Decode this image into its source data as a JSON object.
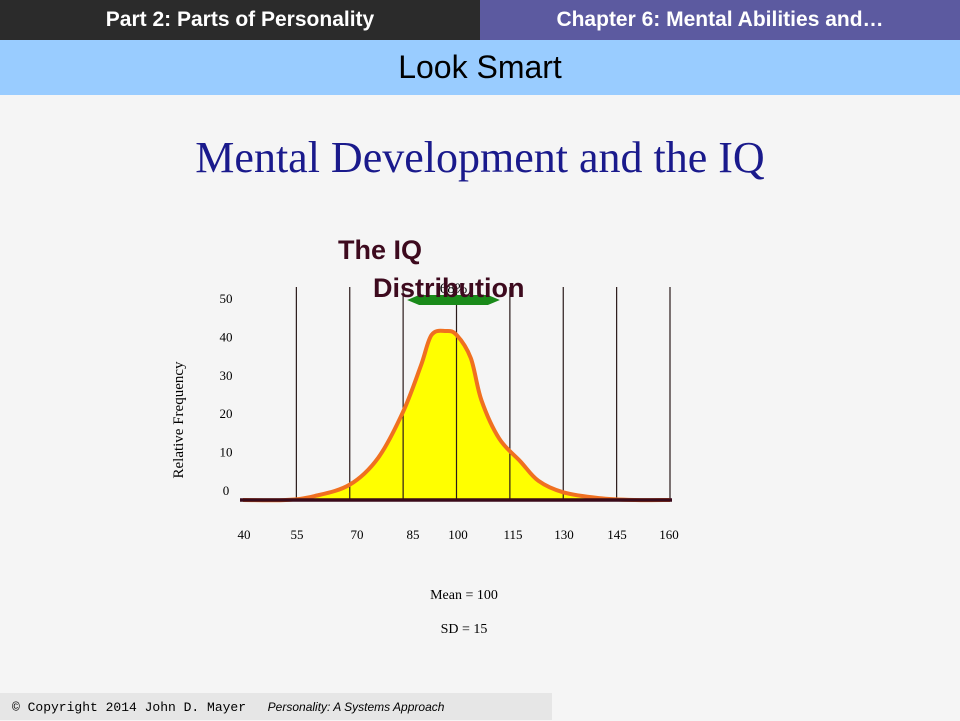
{
  "header": {
    "left": "Part 2:  Parts of Personality",
    "right": "Chapter 6: Mental Abilities and…"
  },
  "subheader": "Look Smart",
  "slide_title": "Mental Development and the  IQ",
  "footer": {
    "copyright": "© Copyright 2014  John D. Mayer",
    "book": "Personality: A Systems Approach"
  },
  "colors": {
    "fill": "#ffff00",
    "curve": "#f07020",
    "band": "#1a8a1a",
    "baseline": "#3a0a1a",
    "title": "#3d0a1e"
  },
  "chart_data": {
    "type": "area",
    "title": "The IQ Distribution",
    "title_lines": [
      "The IQ",
      "Distribution"
    ],
    "ylabel": "Relative Frequency",
    "xlabel": "",
    "x_ticks": [
      "40",
      "55",
      "70",
      "85",
      "100",
      "115",
      "130",
      "145",
      "160"
    ],
    "y_ticks": [
      "0",
      "10",
      "20",
      "30",
      "40",
      "50"
    ],
    "xlim": [
      40,
      160
    ],
    "ylim": [
      0,
      50
    ],
    "grid_lines_x": [
      55,
      70,
      85,
      100,
      115,
      130,
      145,
      160
    ],
    "points": [
      {
        "x": 40,
        "y": 0
      },
      {
        "x": 52,
        "y": 0
      },
      {
        "x": 60,
        "y": 1
      },
      {
        "x": 70,
        "y": 4
      },
      {
        "x": 78,
        "y": 11
      },
      {
        "x": 85,
        "y": 23
      },
      {
        "x": 90,
        "y": 35
      },
      {
        "x": 93,
        "y": 43
      },
      {
        "x": 97,
        "y": 44
      },
      {
        "x": 100,
        "y": 43
      },
      {
        "x": 104,
        "y": 37
      },
      {
        "x": 107,
        "y": 26
      },
      {
        "x": 112,
        "y": 16
      },
      {
        "x": 118,
        "y": 10
      },
      {
        "x": 123,
        "y": 5
      },
      {
        "x": 130,
        "y": 2
      },
      {
        "x": 140,
        "y": 0.5
      },
      {
        "x": 150,
        "y": 0
      },
      {
        "x": 160,
        "y": 0
      }
    ],
    "annotations": {
      "band_label": "68%",
      "band_range": [
        85,
        115
      ],
      "mean": "Mean = 100",
      "sd": "SD = 15"
    }
  }
}
